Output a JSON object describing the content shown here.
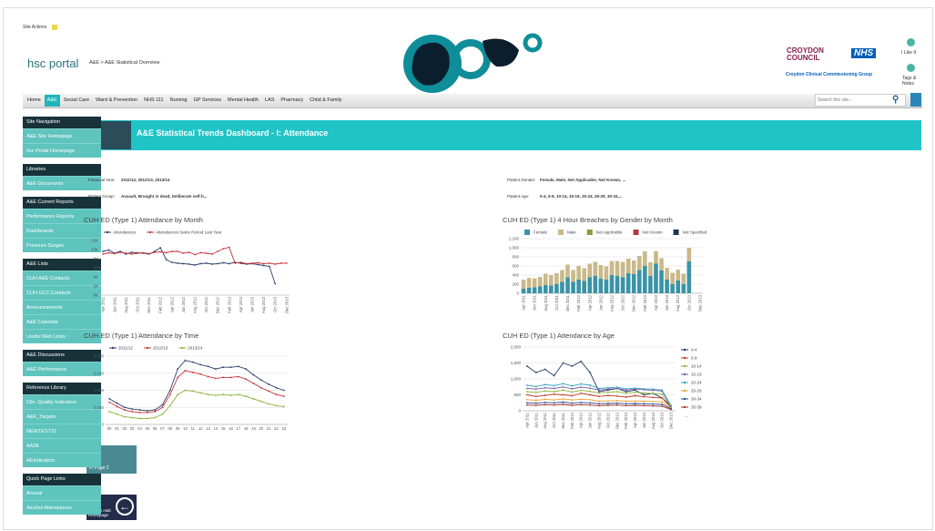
{
  "header": {
    "site_actions": "Site Actions",
    "logo": "hsc portal",
    "breadcrumb": "A&E > A&E Statistical Overview",
    "council": "CROYDON COUNCIL",
    "nhs": "NHS",
    "ccg": "Croydon Clinical Commissioning Group",
    "like": "I Like It",
    "tags": "Tags & Notes"
  },
  "nav": [
    "Home",
    "A&E",
    "Social Care",
    "Ward & Prevention",
    "NHS 111",
    "Nursing",
    "GP Services",
    "Mental Health",
    "LAS",
    "Pharmacy",
    "Child & Family"
  ],
  "search_placeholder": "Search this site...",
  "sidebar": [
    {
      "heading": "Site Navigation",
      "items": [
        "A&E Site Homepage",
        "hsc Portal Homepage"
      ]
    },
    {
      "heading": "Libraries",
      "items": [
        "A&E Documents"
      ]
    },
    {
      "heading": "A&E Current Reports",
      "items": [
        "Performance Reports",
        "Dashboards",
        "Pressure Surges"
      ]
    },
    {
      "heading": "A&E Lists",
      "items": [
        "CUH A&E Contacts",
        "CUH UCC Contacts",
        "Announcements",
        "A&E Calendar",
        "Useful Web Links"
      ]
    },
    {
      "heading": "A&E Discussions",
      "items": [
        "A&E Performance"
      ]
    },
    {
      "heading": "Reference Library",
      "items": [
        "Clin. Quality Indicators",
        "A&E_Targets",
        "NEWTEST22",
        "AA28",
        "AEIndicators"
      ]
    },
    {
      "heading": "Quick Page Links",
      "items": [
        "Annual",
        "Alcohol Attendances"
      ]
    }
  ],
  "banner": {
    "title": "A&E Statistical Trends Dashboard - I:  Attendance"
  },
  "filters": [
    {
      "label": "Financial Year:",
      "value": "2011/12, 2012/13, 2013/14"
    },
    {
      "label": "Patient Group:",
      "value": "Assault, Brought in dead, Deliberate self-h..."
    },
    {
      "label": "Patient Gender:",
      "value": "Female, Male, Not Applicable, Not Known, ..."
    },
    {
      "label": "Patient Age:",
      "value": "0-4, 5-9, 10-14, 15-19, 20-24, 25-29, 30-34,..."
    }
  ],
  "charts": [
    {
      "type": "line",
      "title": "CUH ED (Type 1) Attendance by Month",
      "legend": "top",
      "grid": false,
      "categories": [
        "Apr 2011",
        null,
        "Jun 2011",
        null,
        "Aug 2011",
        null,
        "Oct 2011",
        null,
        "Dec 2011",
        null,
        "Feb 2012",
        null,
        "Apr 2012",
        null,
        "Jun 2012",
        null,
        "Aug 2012",
        null,
        "Oct 2012",
        null,
        "Dec 2012",
        null,
        "Feb 2013",
        null,
        "Apr 2013",
        null,
        "Jun 2013",
        null,
        "Aug 2013",
        null,
        "Oct 2013",
        null,
        "Dec 2013"
      ],
      "ylim": [
        0,
        12
      ],
      "yticks": [
        {
          "value": 0,
          "label": "0K"
        },
        {
          "value": 2,
          "label": "2K"
        },
        {
          "value": 4,
          "label": "4K"
        },
        {
          "value": 6,
          "label": "6K"
        },
        {
          "value": 8,
          "label": "8K"
        },
        {
          "value": 10,
          "label": "10K"
        },
        {
          "value": 12,
          "label": "12K"
        }
      ],
      "series": [
        {
          "name": "Attendances",
          "color": "#2b3f6b",
          "values": [
            9.6,
            9.9,
            9.2,
            9.6,
            9.0,
            9.4,
            9.3,
            9.2,
            9.0,
            9.6,
            10.4,
            7.8,
            7.2,
            7.0,
            6.9,
            6.8,
            6.6,
            6.9,
            7.0,
            6.8,
            6.9,
            7.1,
            6.9,
            7.2,
            7.0,
            6.8,
            6.9,
            6.7,
            6.5,
            6.3,
            2.5,
            null,
            null
          ]
        },
        {
          "name": "Attendances Same Period Last Year",
          "color": "#c8363a",
          "values": [
            9.0,
            9.3,
            9.1,
            9.4,
            9.2,
            9.0,
            9.2,
            9.3,
            9.1,
            9.4,
            9.5,
            9.3,
            9.6,
            9.6,
            9.2,
            9.4,
            8.9,
            9.3,
            9.2,
            9.0,
            9.6,
            10.2,
            10.5,
            7.0,
            7.2,
            6.9,
            7.0,
            7.1,
            6.9,
            7.0,
            6.8,
            7.0,
            7.0
          ]
        }
      ]
    },
    {
      "type": "stacked_bar",
      "title": "CUH ED (Type 1) 4 Hour Breaches by Gender by Month",
      "legend": "top",
      "grid": true,
      "categories": [
        "Apr 2011",
        null,
        "Jun 2011",
        null,
        "Aug 2011",
        null,
        "Oct 2011",
        null,
        "Dec 2011",
        null,
        "Feb 2012",
        null,
        "Apr 2012",
        null,
        "Jun 2012",
        null,
        "Aug 2012",
        null,
        "Oct 2012",
        null,
        "Dec 2012",
        null,
        "Feb 2013",
        null,
        "Apr 2013",
        null,
        "Jun 2013",
        null,
        "Aug 2013",
        null,
        "Oct 2013",
        null,
        "Dec 2013"
      ],
      "ylim": [
        0,
        1200
      ],
      "yticks": [
        0,
        200,
        400,
        600,
        800,
        {
          "value": 1000,
          "label": "1,000"
        },
        {
          "value": 1200,
          "label": "1,200"
        }
      ],
      "series": [
        {
          "name": "Female",
          "color": "#3a93a6",
          "values": [
            100,
            120,
            130,
            150,
            180,
            170,
            200,
            250,
            350,
            250,
            300,
            270,
            350,
            380,
            320,
            300,
            400,
            380,
            350,
            440,
            420,
            510,
            600,
            380,
            650,
            500,
            300,
            200,
            280,
            200,
            700,
            null,
            null
          ]
        },
        {
          "name": "Male",
          "color": "#c9b98a",
          "values": [
            200,
            220,
            200,
            210,
            250,
            230,
            240,
            260,
            280,
            260,
            300,
            280,
            300,
            310,
            300,
            290,
            310,
            330,
            340,
            320,
            300,
            310,
            320,
            300,
            280,
            270,
            260,
            250,
            240,
            230,
            300,
            null,
            null
          ]
        },
        {
          "name": "Not Applicable",
          "color": "#8a9a3a",
          "values": [
            0,
            0,
            0,
            0,
            0,
            0,
            0,
            0,
            0,
            0,
            0,
            0,
            0,
            0,
            0,
            0,
            0,
            0,
            0,
            0,
            0,
            0,
            0,
            0,
            0,
            0,
            0,
            0,
            0,
            0,
            0,
            null,
            null
          ]
        },
        {
          "name": "Not Known",
          "color": "#b03a3a",
          "values": [
            0,
            0,
            0,
            0,
            0,
            0,
            0,
            0,
            0,
            0,
            0,
            0,
            0,
            0,
            0,
            0,
            0,
            0,
            0,
            0,
            0,
            0,
            0,
            0,
            0,
            0,
            0,
            0,
            0,
            0,
            0,
            null,
            null
          ]
        },
        {
          "name": "Not Specified",
          "color": "#1f3458",
          "values": [
            0,
            0,
            0,
            0,
            0,
            0,
            0,
            0,
            0,
            0,
            0,
            0,
            0,
            0,
            0,
            0,
            0,
            0,
            0,
            0,
            0,
            0,
            0,
            0,
            0,
            0,
            0,
            0,
            0,
            0,
            0,
            null,
            null
          ]
        }
      ]
    },
    {
      "type": "line",
      "title": "CUH ED (Type 1) Attendance by Time",
      "legend": "top",
      "grid": true,
      "categories": [
        "00",
        "01",
        "02",
        "03",
        "04",
        "05",
        "06",
        "07",
        "08",
        "09",
        "10",
        "11",
        "12",
        "13",
        "14",
        "15",
        "16",
        "17",
        "18",
        "19",
        "20",
        "21",
        "22",
        "23"
      ],
      "ylim": [
        0,
        8000
      ],
      "yticks": [
        0,
        {
          "value": 2000,
          "label": "2,000"
        },
        {
          "value": 4000,
          "label": "4,000"
        },
        {
          "value": 6000,
          "label": "6,000"
        },
        {
          "value": 8000,
          "label": "8,000"
        }
      ],
      "series": [
        {
          "name": "2011/12",
          "color": "#2b3f6b",
          "values": [
            3000,
            2500,
            2000,
            1800,
            1700,
            1600,
            1700,
            2300,
            4000,
            6500,
            7500,
            7300,
            7000,
            6800,
            6500,
            6700,
            6700,
            6800,
            6500,
            5800,
            5200,
            4700,
            4300,
            4000
          ]
        },
        {
          "name": "2012/13",
          "color": "#c8363a",
          "values": [
            2600,
            2100,
            1700,
            1500,
            1400,
            1400,
            1500,
            2000,
            3500,
            5500,
            6300,
            6100,
            5900,
            5600,
            5400,
            5500,
            5500,
            5600,
            5300,
            4800,
            4300,
            3900,
            3500,
            3300
          ]
        },
        {
          "name": "2013/14",
          "color": "#8db33a",
          "values": [
            1500,
            1200,
            900,
            800,
            700,
            700,
            800,
            1200,
            2200,
            3500,
            4000,
            3900,
            3700,
            3500,
            3400,
            3500,
            3400,
            3500,
            3300,
            3000,
            2700,
            2400,
            2200,
            2100
          ]
        }
      ]
    },
    {
      "type": "line",
      "title": "CUH ED (Type 1) Attendance by Age",
      "legend": "right",
      "legend_more": "...",
      "grid": true,
      "categories": [
        "Apr 2011",
        "Jun 2011",
        "Aug 2011",
        "Oct 2011",
        "Dec 2011",
        "Feb 2012",
        "Apr 2012",
        "Jun 2012",
        "Aug 2012",
        "Oct 2012",
        "Dec 2012",
        "Feb 2013",
        "Apr 2013",
        "Jun 2013",
        "Aug 2013",
        "Oct 2013",
        "Dec 2013"
      ],
      "ylim": [
        0,
        2000
      ],
      "yticks": [
        0,
        500,
        {
          "value": 1000,
          "label": "1,000"
        },
        {
          "value": 1500,
          "label": "1,500"
        },
        {
          "value": 2000,
          "label": "2,000"
        }
      ],
      "series": [
        {
          "name": "0-4",
          "color": "#1f3864",
          "values": [
            1400,
            1200,
            1300,
            1100,
            1500,
            1400,
            1550,
            1200,
            600,
            650,
            700,
            600,
            650,
            500,
            550,
            400,
            150
          ]
        },
        {
          "name": "5-9",
          "color": "#c0392b",
          "values": [
            500,
            450,
            480,
            520,
            500,
            470,
            550,
            500,
            450,
            480,
            460,
            430,
            470,
            440,
            420,
            400,
            100
          ]
        },
        {
          "name": "10-14",
          "color": "#8db33a",
          "values": [
            600,
            580,
            620,
            600,
            650,
            590,
            640,
            610,
            560,
            580,
            600,
            550,
            580,
            560,
            540,
            520,
            120
          ]
        },
        {
          "name": "15-19",
          "color": "#7a5aa0",
          "values": [
            700,
            680,
            720,
            700,
            750,
            690,
            740,
            710,
            650,
            680,
            700,
            650,
            680,
            660,
            640,
            620,
            150
          ]
        },
        {
          "name": "20-24",
          "color": "#30a0c0",
          "values": [
            800,
            760,
            820,
            790,
            850,
            780,
            840,
            800,
            700,
            720,
            740,
            690,
            710,
            690,
            680,
            650,
            160
          ]
        },
        {
          "name": "25-29",
          "color": "#f0a030",
          "values": [
            350,
            330,
            360,
            340,
            370,
            340,
            360,
            350,
            300,
            310,
            320,
            300,
            310,
            300,
            290,
            280,
            80
          ]
        },
        {
          "name": "30-34",
          "color": "#2a4a8a",
          "values": [
            250,
            240,
            260,
            250,
            270,
            240,
            260,
            250,
            220,
            230,
            240,
            220,
            230,
            220,
            210,
            200,
            60
          ]
        },
        {
          "name": "35-39",
          "color": "#a03030",
          "values": [
            180,
            170,
            190,
            180,
            200,
            170,
            190,
            180,
            160,
            170,
            180,
            160,
            170,
            160,
            150,
            140,
            40
          ]
        }
      ]
    }
  ],
  "buttons": [
    "To Page 2",
    "Back to A&E Homepage"
  ]
}
